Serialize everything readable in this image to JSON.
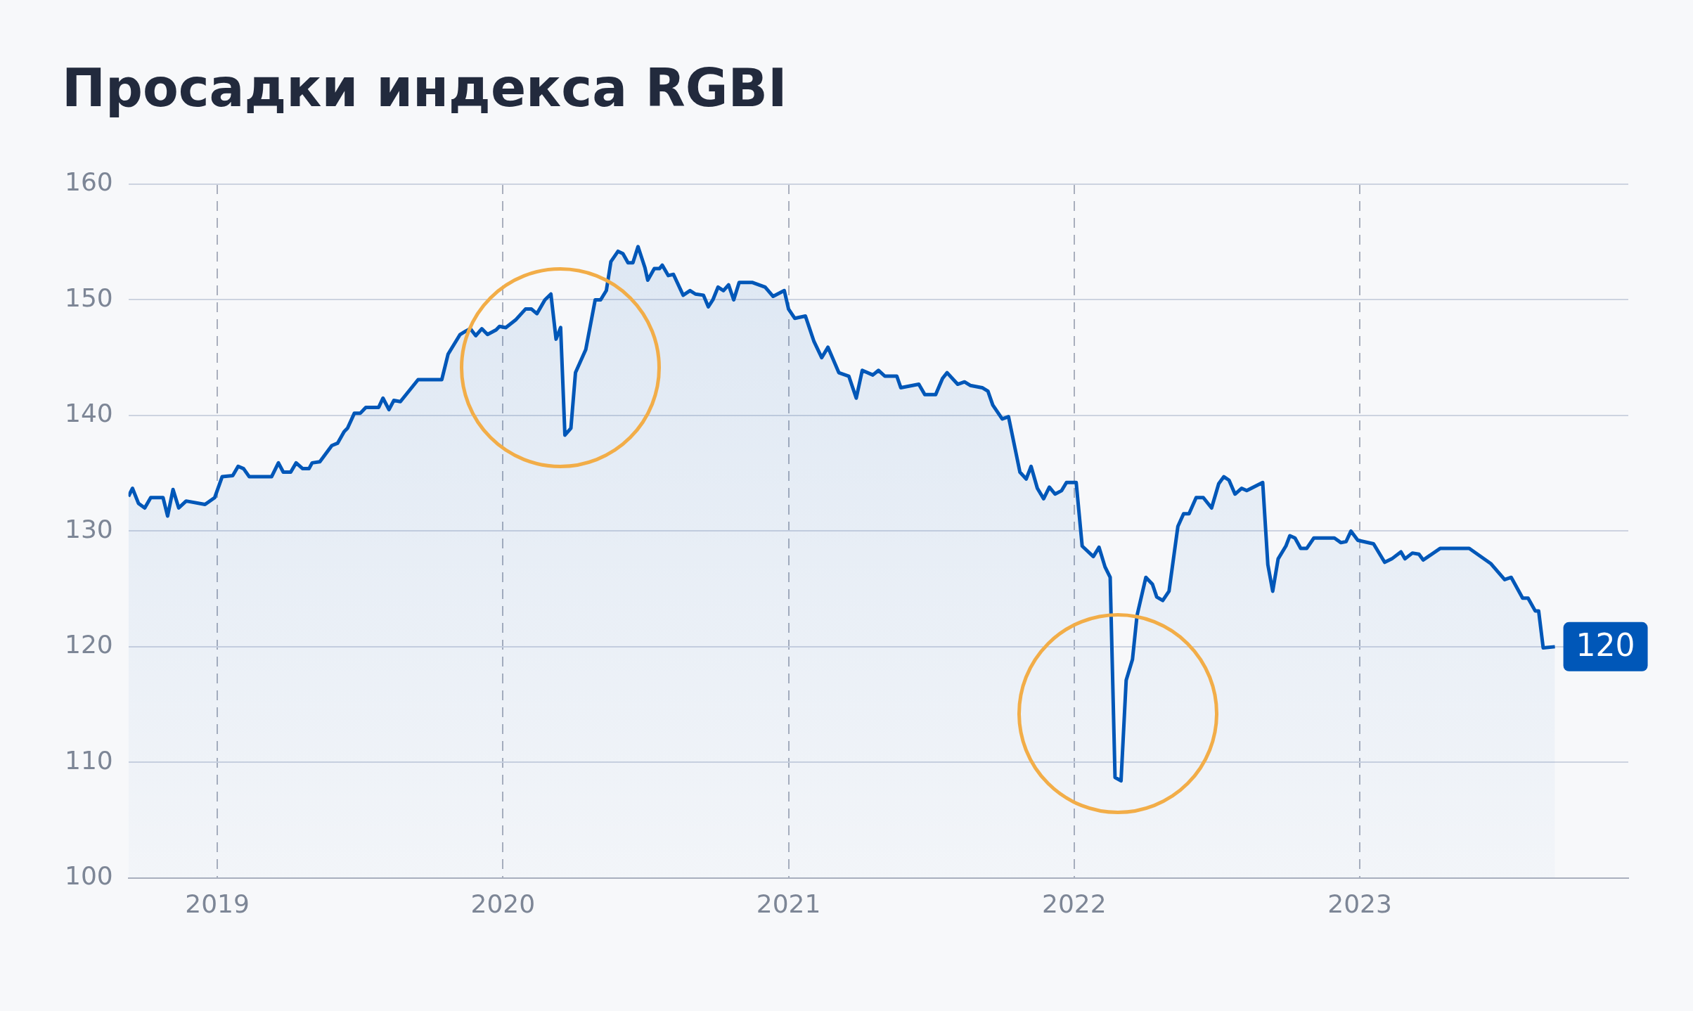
{
  "chart_data": {
    "type": "area",
    "title": "Просадки индекса RGBI",
    "x": [
      2018.689,
      2018.703,
      2018.724,
      2018.746,
      2018.767,
      2018.81,
      2018.826,
      2018.845,
      2018.865,
      2018.891,
      2018.957,
      2018.991,
      2019.017,
      2019.054,
      2019.073,
      2019.092,
      2019.112,
      2019.19,
      2019.214,
      2019.231,
      2019.257,
      2019.276,
      2019.299,
      2019.321,
      2019.332,
      2019.359,
      2019.401,
      2019.421,
      2019.444,
      2019.456,
      2019.48,
      2019.501,
      2019.52,
      2019.565,
      2019.58,
      2019.601,
      2019.618,
      2019.641,
      2019.703,
      2019.786,
      2019.808,
      2019.85,
      2019.87,
      2019.886,
      2019.905,
      2019.926,
      2019.946,
      2019.976,
      2019.988,
      2020.01,
      2020.046,
      2020.079,
      2020.1,
      2020.119,
      2020.147,
      2020.168,
      2020.186,
      2020.202,
      2020.217,
      2020.238,
      2020.254,
      2020.29,
      2020.323,
      2020.342,
      2020.362,
      2020.378,
      2020.403,
      2020.42,
      2020.438,
      2020.455,
      2020.473,
      2020.497,
      2020.507,
      2020.53,
      2020.548,
      2020.558,
      2020.579,
      2020.597,
      2020.631,
      2020.655,
      2020.674,
      2020.702,
      2020.719,
      2020.735,
      2020.753,
      2020.772,
      2020.79,
      2020.808,
      2020.827,
      2020.874,
      2020.918,
      2020.946,
      2020.985,
      2021.0,
      2021.022,
      2021.059,
      2021.089,
      2021.116,
      2021.138,
      2021.176,
      2021.211,
      2021.237,
      2021.258,
      2021.295,
      2021.315,
      2021.337,
      2021.379,
      2021.393,
      2021.456,
      2021.477,
      2021.515,
      2021.539,
      2021.555,
      2021.592,
      2021.616,
      2021.636,
      2021.678,
      2021.698,
      2021.715,
      2021.748,
      2021.77,
      2021.81,
      2021.832,
      2021.849,
      2021.871,
      2021.893,
      2021.913,
      2021.933,
      2021.956,
      2021.973,
      2022.007,
      2022.028,
      2022.067,
      2022.087,
      2022.108,
      2022.126,
      2022.143,
      2022.164,
      2022.182,
      2022.204,
      2022.22,
      2022.251,
      2022.274,
      2022.289,
      2022.31,
      2022.332,
      2022.363,
      2022.383,
      2022.402,
      2022.427,
      2022.452,
      2022.481,
      2022.506,
      2022.524,
      2022.542,
      2022.563,
      2022.586,
      2022.604,
      2022.66,
      2022.678,
      2022.695,
      2022.714,
      2022.741,
      2022.755,
      2022.773,
      2022.793,
      2022.814,
      2022.839,
      2022.911,
      2022.934,
      2022.952,
      2022.969,
      2022.993,
      2023.048,
      2023.087,
      2023.112,
      2023.144,
      2023.158,
      2023.184,
      2023.207,
      2023.222,
      2023.281,
      2023.383,
      2023.458,
      2023.507,
      2023.53,
      2023.57,
      2023.589,
      2023.614,
      2023.626,
      2023.642,
      2023.683
    ],
    "series": [
      {
        "color": "#0057b8",
        "values": [
          133.0,
          133.7,
          132.4,
          132.0,
          132.9,
          132.9,
          131.3,
          133.6,
          132.0,
          132.6,
          132.3,
          132.9,
          134.7,
          134.8,
          135.6,
          135.4,
          134.7,
          134.7,
          135.9,
          135.1,
          135.1,
          135.9,
          135.4,
          135.4,
          135.9,
          136.0,
          137.4,
          137.6,
          138.6,
          138.9,
          140.2,
          140.2,
          140.7,
          140.7,
          141.5,
          140.5,
          141.3,
          141.2,
          143.1,
          143.1,
          145.3,
          147.0,
          147.3,
          147.5,
          146.9,
          147.5,
          147.0,
          147.4,
          147.7,
          147.6,
          148.3,
          149.2,
          149.2,
          148.8,
          150.0,
          150.5,
          146.6,
          147.6,
          138.3,
          138.9,
          143.7,
          145.7,
          150.0,
          150.0,
          150.8,
          153.3,
          154.2,
          154.0,
          153.2,
          153.2,
          154.6,
          152.8,
          151.7,
          152.7,
          152.7,
          153.0,
          152.1,
          152.2,
          150.4,
          150.8,
          150.5,
          150.4,
          149.4,
          150.0,
          151.1,
          150.8,
          151.3,
          150.0,
          151.5,
          151.5,
          151.1,
          150.3,
          150.8,
          149.2,
          148.4,
          148.6,
          146.4,
          145.0,
          145.9,
          143.7,
          143.4,
          141.5,
          143.9,
          143.5,
          143.9,
          143.4,
          143.4,
          142.4,
          142.7,
          141.8,
          141.8,
          143.2,
          143.7,
          142.7,
          142.9,
          142.6,
          142.4,
          142.1,
          140.9,
          139.7,
          139.9,
          135.1,
          134.5,
          135.6,
          133.7,
          132.8,
          133.8,
          133.2,
          133.5,
          134.2,
          134.2,
          128.7,
          127.8,
          128.6,
          126.9,
          126.0,
          108.7,
          108.4,
          117.1,
          118.9,
          122.7,
          126.0,
          125.4,
          124.3,
          124.0,
          124.8,
          130.4,
          131.5,
          131.5,
          132.9,
          132.9,
          132.0,
          134.1,
          134.7,
          134.4,
          133.2,
          133.7,
          133.5,
          134.2,
          127.1,
          124.8,
          127.6,
          128.7,
          129.6,
          129.4,
          128.5,
          128.5,
          129.4,
          129.4,
          129.0,
          129.1,
          130.0,
          129.2,
          128.9,
          127.3,
          127.6,
          128.2,
          127.6,
          128.1,
          128.0,
          127.5,
          128.5,
          128.5,
          127.2,
          125.8,
          126.0,
          124.2,
          124.2,
          123.1,
          123.1,
          119.9,
          120.0
        ]
      }
    ],
    "xlim": [
      2018.689,
      2023.94
    ],
    "xticks": [
      2019,
      2020,
      2021,
      2022,
      2023
    ],
    "ylim": [
      100,
      160
    ],
    "yticks": [
      100,
      110,
      120,
      130,
      140,
      150,
      160
    ],
    "grid": true,
    "legend": false,
    "marker": "none",
    "line_style": "solid",
    "annotations": [
      {
        "text": "120",
        "x": 2023.683,
        "y": 120
      }
    ]
  }
}
